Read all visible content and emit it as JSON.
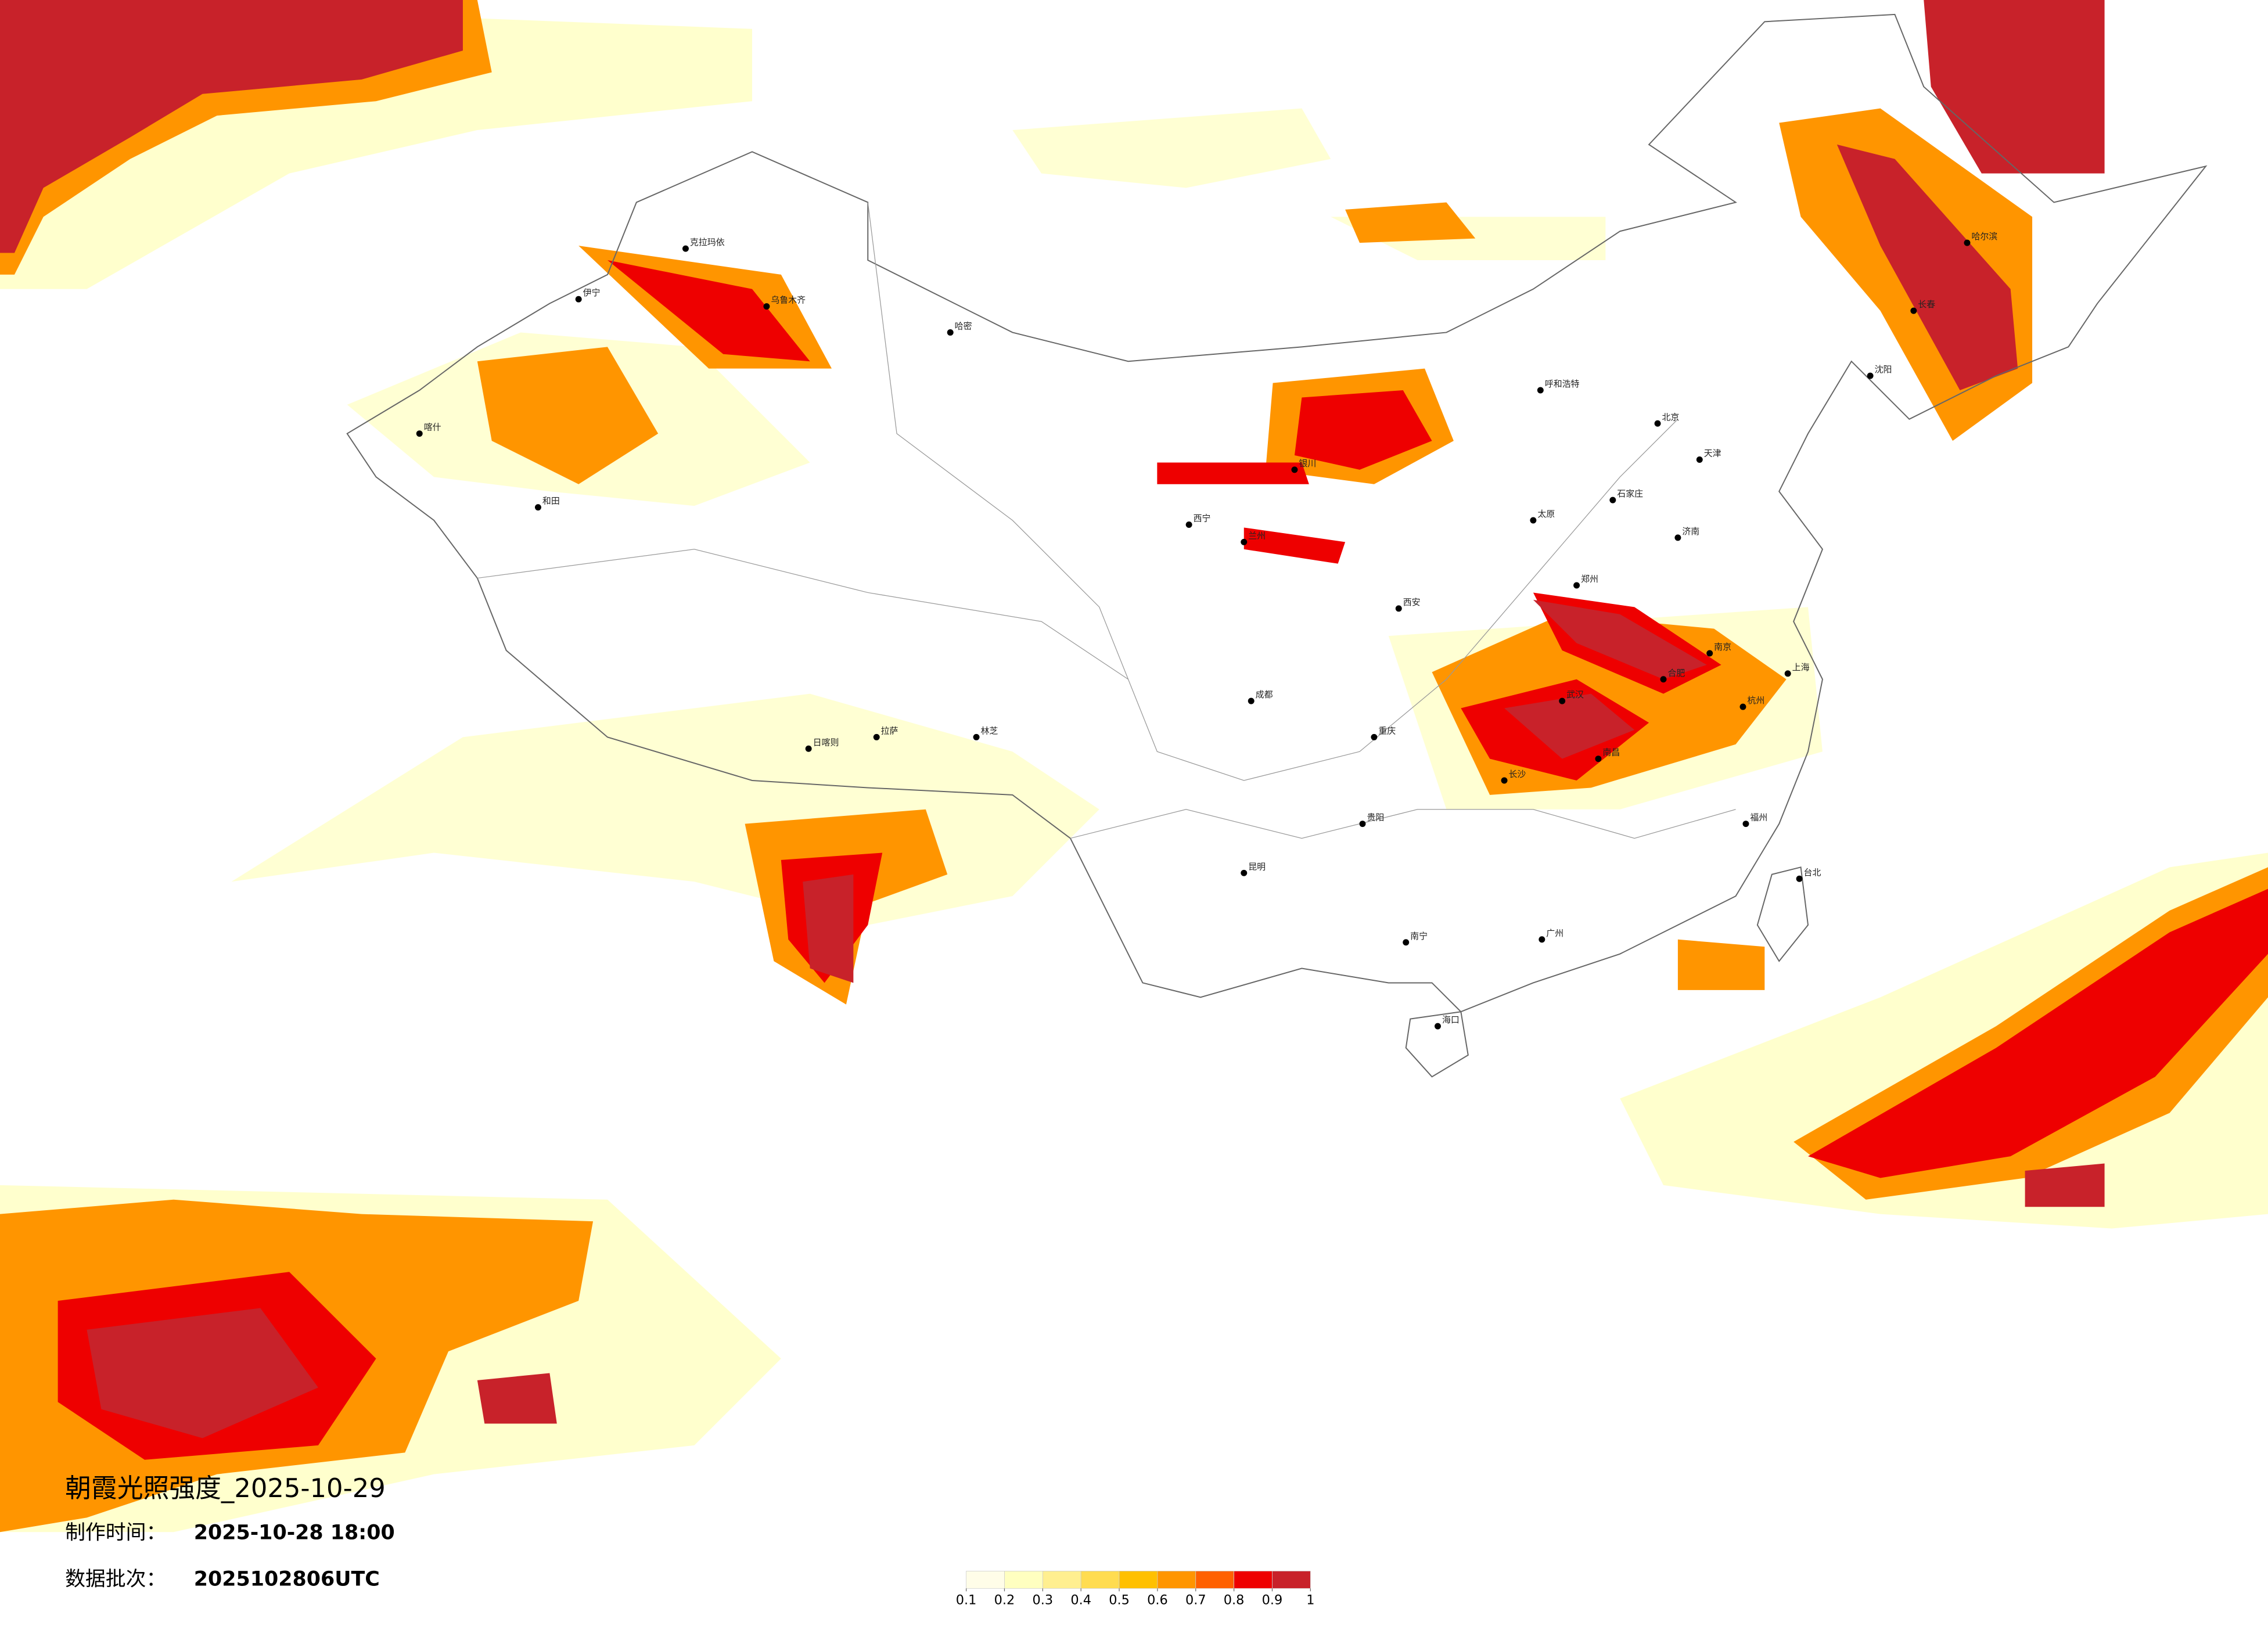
{
  "title": "朝霞光照强度_2025-10-29",
  "make_time": {
    "label": "制作时间：",
    "value": "2025-10-28 18:00"
  },
  "batch": {
    "label": "数据批次：",
    "value": "2025102806UTC"
  },
  "legend": {
    "colors": [
      "#fffde8",
      "#ffffc0",
      "#ffef90",
      "#ffdc50",
      "#ffc000",
      "#ff9500",
      "#ff6000",
      "#ee0000",
      "#c8222a"
    ],
    "ticks": [
      0.1,
      0.2,
      0.3,
      0.4,
      0.5,
      0.6,
      0.7,
      0.8,
      0.9,
      1
    ]
  },
  "cities": [
    "克拉玛依",
    "乌鲁木齐",
    "伊宁",
    "哈密",
    "喀什",
    "和田",
    "拉萨",
    "日喀则",
    "林芝",
    "西宁",
    "兰州",
    "银川",
    "呼和浩特",
    "北京",
    "天津",
    "石家庄",
    "太原",
    "西安",
    "成都",
    "重庆",
    "贵阳",
    "昆明",
    "南宁",
    "广州",
    "长沙",
    "武汉",
    "南京",
    "上海",
    "杭州",
    "福州",
    "台北",
    "海口",
    "哈尔滨",
    "长春",
    "沈阳",
    "郑州",
    "济南",
    "合肥",
    "南昌"
  ]
}
